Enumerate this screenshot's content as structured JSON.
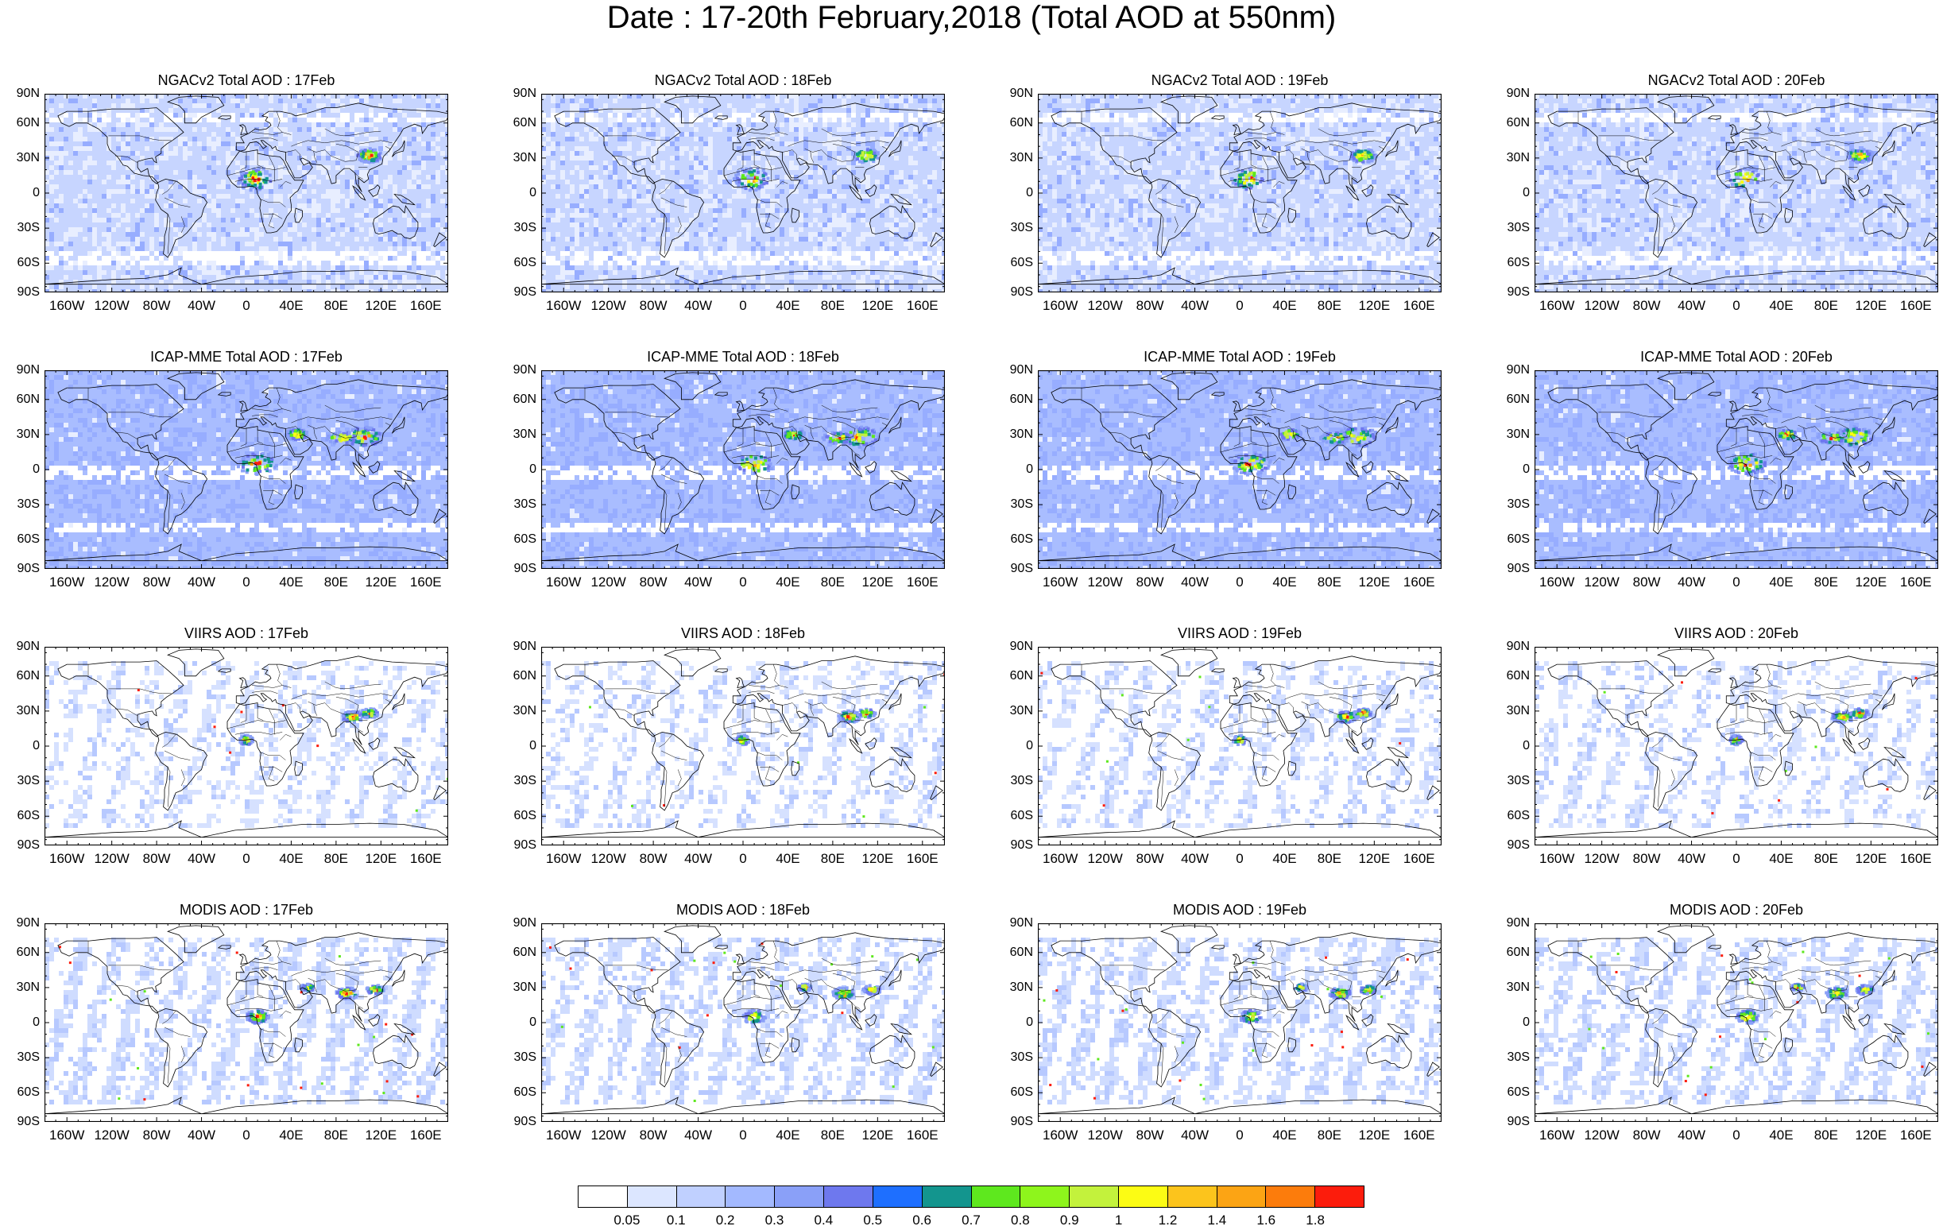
{
  "title": "Date : 17-20th February,2018 (Total AOD at 550nm)",
  "lat_labels": [
    "90N",
    "60N",
    "30N",
    "0",
    "30S",
    "60S",
    "90S"
  ],
  "lon_labels": [
    "160W",
    "120W",
    "80W",
    "40W",
    "0",
    "40E",
    "80E",
    "120E",
    "160E"
  ],
  "rows": [
    {
      "name": "NGACv2",
      "panels": [
        {
          "title": "NGACv2 Total AOD : 17Feb"
        },
        {
          "title": "NGACv2 Total AOD : 18Feb"
        },
        {
          "title": "NGACv2 Total AOD : 19Feb"
        },
        {
          "title": "NGACv2 Total AOD : 20Feb"
        }
      ]
    },
    {
      "name": "ICAP-MME",
      "panels": [
        {
          "title": "ICAP-MME Total AOD : 17Feb"
        },
        {
          "title": "ICAP-MME Total AOD : 18Feb"
        },
        {
          "title": "ICAP-MME Total AOD : 19Feb"
        },
        {
          "title": "ICAP-MME Total AOD : 20Feb"
        }
      ]
    },
    {
      "name": "VIIRS",
      "panels": [
        {
          "title": "VIIRS AOD : 17Feb"
        },
        {
          "title": "VIIRS AOD : 18Feb"
        },
        {
          "title": "VIIRS AOD : 19Feb"
        },
        {
          "title": "VIIRS AOD : 20Feb"
        }
      ]
    },
    {
      "name": "MODIS",
      "panels": [
        {
          "title": "MODIS AOD : 17Feb"
        },
        {
          "title": "MODIS AOD : 18Feb"
        },
        {
          "title": "MODIS AOD : 19Feb"
        },
        {
          "title": "MODIS AOD : 20Feb"
        }
      ]
    }
  ],
  "colorbar": {
    "labels": [
      "0.05",
      "0.1",
      "0.2",
      "0.3",
      "0.4",
      "0.5",
      "0.6",
      "0.7",
      "0.8",
      "0.9",
      "1",
      "1.2",
      "1.4",
      "1.6",
      "1.8"
    ],
    "colors": [
      "#ffffff",
      "#dce6ff",
      "#c0d0ff",
      "#a3b9ff",
      "#8aa0f8",
      "#6e78ee",
      "#1e6fff",
      "#13958e",
      "#5ee81e",
      "#8ef51c",
      "#c3f23c",
      "#fcfc14",
      "#fcc41c",
      "#fca414",
      "#fc7c0c",
      "#fc1c0c"
    ]
  }
}
